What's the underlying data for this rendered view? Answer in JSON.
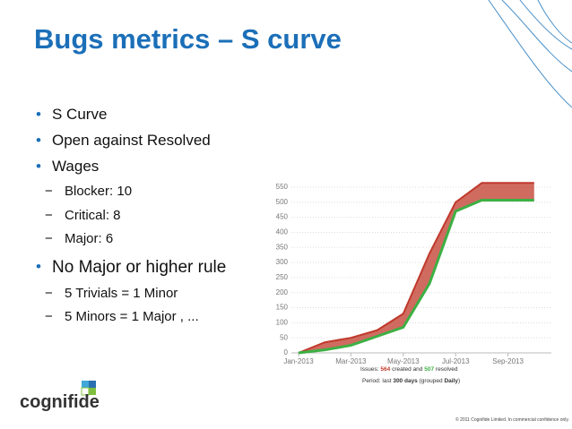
{
  "title": "Bugs metrics – S curve",
  "bullets": [
    {
      "text": "S Curve"
    },
    {
      "text": "Open against Resolved"
    },
    {
      "text": "Wages",
      "sub": [
        "Blocker: 10",
        "Critical: 8",
        "Major: 6"
      ]
    },
    {
      "text": "No Major or higher rule",
      "sub": [
        "5 Trivials = 1 Minor",
        "5 Minors = 1 Major , ..."
      ]
    }
  ],
  "chart_data": {
    "type": "area",
    "categories": [
      "Jan-2013",
      null,
      "Mar-2013",
      null,
      "May-2013",
      null,
      "Jul-2013",
      null,
      "Sep-2013",
      null
    ],
    "series": [
      {
        "name": "created",
        "color": "#c0392b",
        "values": [
          0,
          35,
          50,
          75,
          130,
          330,
          500,
          564,
          564,
          564
        ]
      },
      {
        "name": "resolved",
        "color": "#3cb043",
        "values": [
          0,
          10,
          25,
          55,
          85,
          230,
          470,
          507,
          507,
          507
        ]
      }
    ],
    "ylim": [
      0,
      550
    ],
    "yticks": [
      0,
      50,
      100,
      150,
      200,
      250,
      300,
      350,
      400,
      450,
      500,
      550
    ],
    "grid": true,
    "caption": {
      "prefix": "Issues: ",
      "and": " and ",
      "period": [
        "Period: last ",
        "300 days",
        " (grouped ",
        "Daily",
        ")"
      ]
    }
  },
  "logo": "cognifide",
  "footer": "© 2011 Cognifide Limited. In commercial confidence only."
}
